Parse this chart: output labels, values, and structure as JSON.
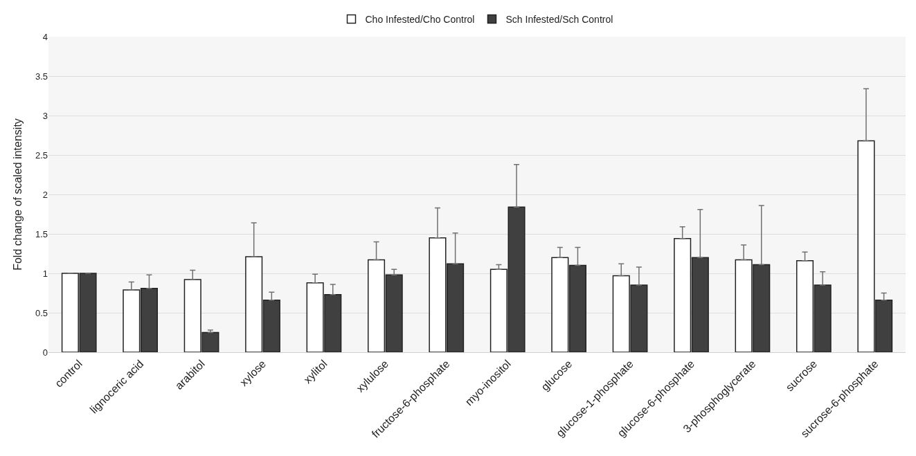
{
  "chart_data": {
    "type": "bar",
    "ylabel": "Fold change of scaled intensity",
    "categories": [
      "control",
      "lignoceric acid",
      "arabitol",
      "xylose",
      "xylitol",
      "xylulose",
      "fructose-6-phosphate",
      "myo-inositol",
      "glucose",
      "glucose-1-phosphate",
      "glucose-6-phosphate",
      "3-phosphoglycerate",
      "sucrose",
      "sucrose-6-phosphate"
    ],
    "series": [
      {
        "name": "Cho Infested/Cho Control",
        "color": "#ffffff",
        "values": [
          1,
          0.79,
          0.92,
          1.21,
          0.88,
          1.17,
          1.45,
          1.05,
          1.2,
          0.97,
          1.44,
          1.17,
          1.16,
          2.68
        ],
        "errors": [
          null,
          [
            0.79,
            0.89
          ],
          [
            0.92,
            1.04
          ],
          [
            1.21,
            1.64
          ],
          [
            0.88,
            0.99
          ],
          [
            1.17,
            1.4
          ],
          [
            1.45,
            1.83
          ],
          [
            1.05,
            1.11
          ],
          [
            1.2,
            1.33
          ],
          [
            0.97,
            1.12
          ],
          [
            1.44,
            1.59
          ],
          [
            1.17,
            1.36
          ],
          [
            1.16,
            1.27
          ],
          [
            2.68,
            3.34
          ]
        ]
      },
      {
        "name": "Sch Infested/Sch Control",
        "color": "#404040",
        "values": [
          1,
          0.81,
          0.25,
          0.66,
          0.73,
          0.98,
          1.12,
          1.84,
          1.1,
          0.85,
          1.2,
          1.11,
          0.85,
          0.66
        ],
        "errors": [
          null,
          [
            0.81,
            0.98
          ],
          [
            0.25,
            0.28
          ],
          [
            0.66,
            0.76
          ],
          [
            0.73,
            0.86
          ],
          [
            0.98,
            1.05
          ],
          [
            1.12,
            1.51
          ],
          [
            1.84,
            2.38
          ],
          [
            1.1,
            1.33
          ],
          [
            0.85,
            1.08
          ],
          [
            1.2,
            1.81
          ],
          [
            1.11,
            1.86
          ],
          [
            0.85,
            1.02
          ],
          [
            0.66,
            0.75
          ]
        ]
      }
    ],
    "ylim": [
      0,
      4
    ],
    "yticks": [
      0,
      0.5,
      1,
      1.5,
      2,
      2.5,
      3,
      3.5,
      4
    ],
    "grid": "y",
    "legend": "top"
  }
}
